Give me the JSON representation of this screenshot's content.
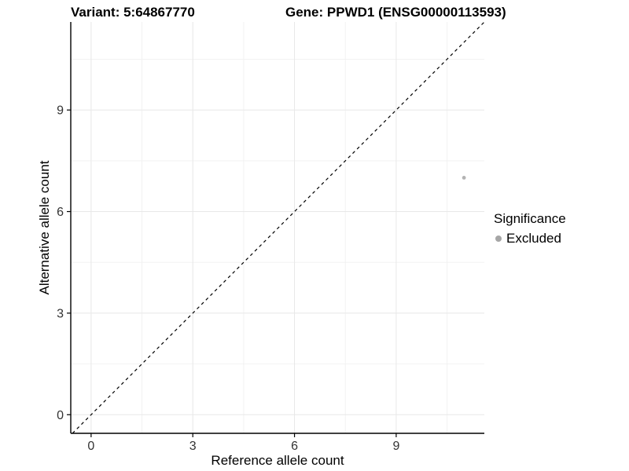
{
  "titles": {
    "left": "Variant: 5:64867770",
    "right": "Gene: PPWD1 (ENSG00000113593)"
  },
  "chart_data": {
    "type": "scatter",
    "title": "Variant: 5:64867770 — Gene: PPWD1 (ENSG00000113593)",
    "xlabel": "Reference allele count",
    "ylabel": "Alternative allele count",
    "xlim": [
      -0.6,
      11.6
    ],
    "ylim": [
      -0.55,
      11.6
    ],
    "xticks": [
      0,
      3,
      6,
      9
    ],
    "yticks": [
      0,
      3,
      6,
      9
    ],
    "minor_ticks": [
      1.5,
      4.5,
      7.5,
      10.5
    ],
    "grid": true,
    "points": [
      {
        "x": 11,
        "y": 7,
        "series": "Excluded",
        "color": "#b3b3b3"
      }
    ],
    "reference_line": {
      "type": "identity y=x",
      "style": "dashed",
      "color": "#000000"
    },
    "legend": {
      "title": "Significance",
      "position": "right",
      "items": [
        {
          "label": "Excluded",
          "color": "#a6a6a6"
        }
      ]
    },
    "colors": {
      "grid_major": "#e8e8e8",
      "grid_minor": "#f2f2f2",
      "axis": "#000000",
      "tick_label": "#333333",
      "point": "#b3b3b3"
    }
  }
}
